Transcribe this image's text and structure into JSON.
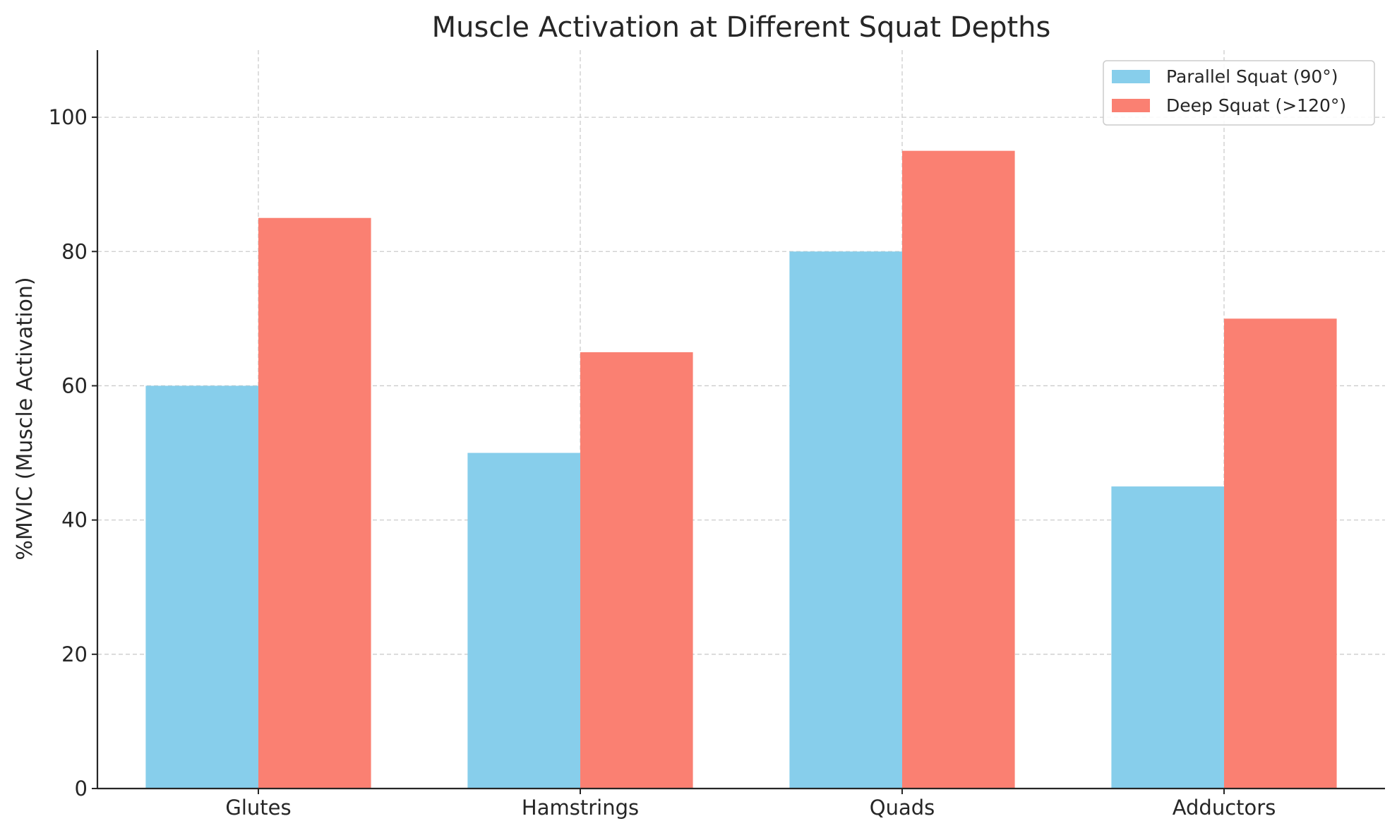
{
  "chart_data": {
    "type": "bar",
    "title": "Muscle Activation at Different Squat Depths",
    "xlabel": "",
    "ylabel": "%MVIC (Muscle Activation)",
    "categories": [
      "Glutes",
      "Hamstrings",
      "Quads",
      "Adductors"
    ],
    "series": [
      {
        "name": "Parallel Squat (90°)",
        "color": "#87CEEB",
        "values": [
          60,
          50,
          80,
          45
        ]
      },
      {
        "name": "Deep Squat (>120°)",
        "color": "#FA8072",
        "values": [
          85,
          65,
          95,
          70
        ]
      }
    ],
    "ylim": [
      0,
      110
    ],
    "yticks": [
      0,
      20,
      40,
      60,
      80,
      100
    ],
    "grid": true,
    "legend_position": "top-right"
  }
}
